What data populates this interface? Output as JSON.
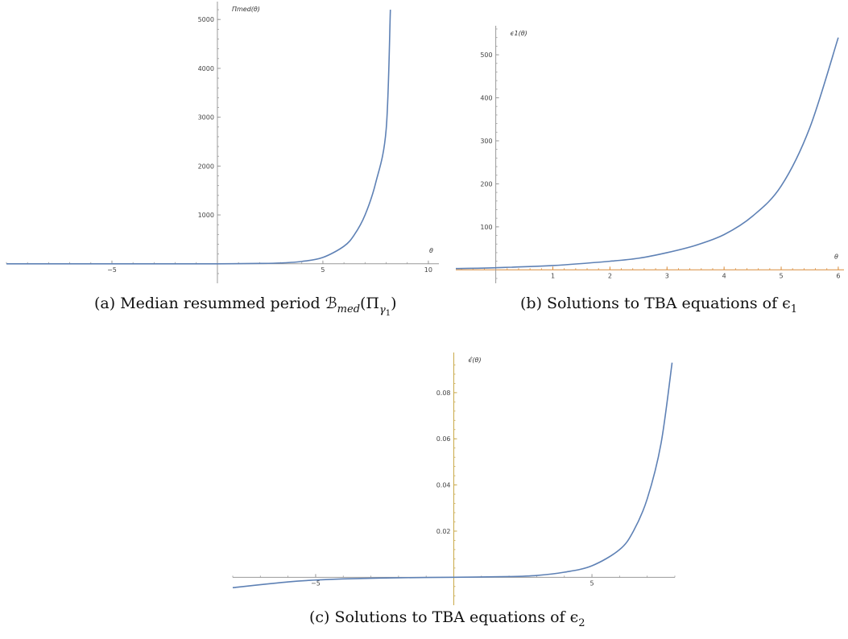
{
  "captions": {
    "a": "(a) Median resummed period ℬ",
    "a_sub": "med",
    "a_arg": "(Π",
    "a_arg_sub": "γ",
    "a_arg_sub2": "1",
    "a_close": ")",
    "b": "(b) Solutions to TBA equations of ϵ",
    "b_sub": "1",
    "c": "(c) Solutions to TBA equations of ϵ",
    "c_sub": "2"
  },
  "colors": {
    "curve": "#5e81b5",
    "axis": "#999999",
    "axis_b_x": "#d98c3b",
    "axis_c_y": "#c9a94a"
  },
  "chart_data": [
    {
      "id": "a",
      "type": "line",
      "title": "",
      "xlabel": "θ",
      "ylabel": "Πmed(θ)",
      "xlim": [
        -10,
        10.5
      ],
      "ylim": [
        -300,
        5300
      ],
      "xticks": [
        -5,
        5,
        10
      ],
      "yticks": [
        1000,
        2000,
        3000,
        4000,
        5000
      ],
      "x": [
        -10,
        -6,
        -4,
        -2,
        0,
        2,
        3,
        4,
        5,
        6,
        6.5,
        7,
        7.5,
        8,
        8.2
      ],
      "y": [
        0,
        0,
        0,
        0,
        0,
        7,
        17,
        48,
        130,
        360,
        600,
        1000,
        1650,
        2750,
        5200
      ]
    },
    {
      "id": "b",
      "type": "line",
      "title": "",
      "xlabel": "θ",
      "ylabel": "ϵ1(θ)",
      "xlim": [
        -0.7,
        6.1
      ],
      "ylim": [
        -20,
        560
      ],
      "xticks": [
        1,
        2,
        3,
        4,
        5,
        6
      ],
      "yticks": [
        100,
        200,
        300,
        400,
        500
      ],
      "x": [
        -0.7,
        0,
        1,
        2,
        2.5,
        3,
        3.5,
        4,
        4.5,
        5,
        5.5,
        6
      ],
      "y": [
        3,
        5,
        10,
        20,
        27,
        40,
        57,
        82,
        125,
        195,
        330,
        540
      ]
    },
    {
      "id": "c",
      "type": "line",
      "title": "",
      "xlabel": "",
      "ylabel": "ϵ̂(θ)",
      "xlim": [
        -8,
        8
      ],
      "ylim": [
        -0.01,
        0.096
      ],
      "xticks": [
        -5,
        5
      ],
      "yticks": [
        0.02,
        0.04,
        0.06,
        0.08
      ],
      "x": [
        -8,
        -6,
        -5,
        -4,
        -2,
        0,
        2,
        3,
        4,
        5,
        6,
        6.5,
        7,
        7.5,
        7.9
      ],
      "y": [
        -0.0045,
        -0.002,
        -0.0012,
        -0.0007,
        -0.0002,
        0,
        0.0003,
        0.0008,
        0.0022,
        0.005,
        0.012,
        0.02,
        0.034,
        0.058,
        0.093
      ]
    }
  ]
}
